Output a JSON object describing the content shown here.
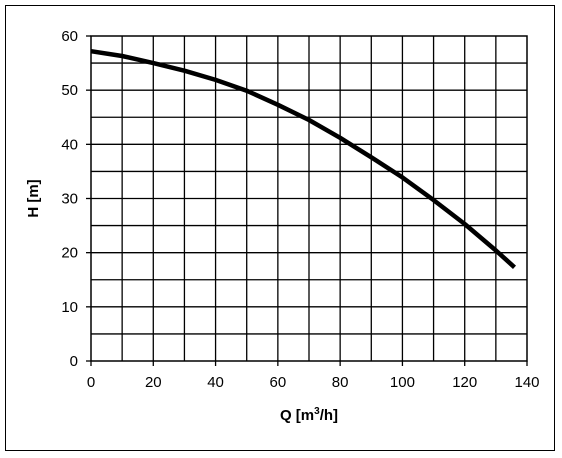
{
  "chart_data": {
    "type": "line",
    "title": "",
    "xlabel": "Q [m³/h]",
    "ylabel": "H [m]",
    "xlim": [
      0,
      140
    ],
    "ylim": [
      0,
      60
    ],
    "x_ticks": [
      0,
      20,
      40,
      60,
      80,
      100,
      120,
      140
    ],
    "y_ticks": [
      0,
      10,
      20,
      30,
      40,
      50,
      60
    ],
    "x_minor_step": 10,
    "y_minor_step": 5,
    "grid": true,
    "legend": "none",
    "colors": {
      "line": "#000000",
      "grid": "#000000"
    },
    "series": [
      {
        "x": [
          0,
          10,
          20,
          30,
          40,
          50,
          60,
          70,
          80,
          90,
          100,
          110,
          120,
          130,
          136
        ],
        "y": [
          57.2,
          56.3,
          55.0,
          53.6,
          51.9,
          49.9,
          47.3,
          44.5,
          41.2,
          37.6,
          33.9,
          29.7,
          25.3,
          20.4,
          17.3
        ]
      }
    ]
  }
}
